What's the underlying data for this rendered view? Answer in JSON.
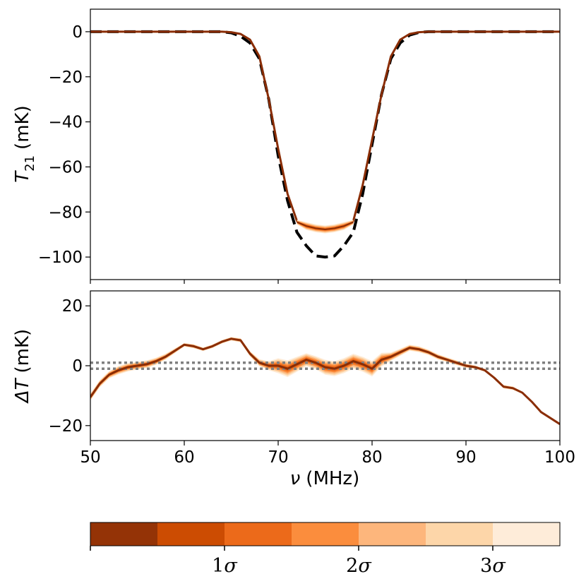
{
  "colors": {
    "model": "#8a2d05",
    "truth": "#000000",
    "zero_band": "#808080",
    "band_levels": [
      "#943306",
      "#cc4c02",
      "#ec6a1a",
      "#fb8d3d",
      "#fdb67c",
      "#fdd6a9",
      "#feecd9"
    ]
  },
  "chart_data": [
    {
      "type": "line",
      "panel": "top",
      "title": "",
      "xlabel": "",
      "ylabel_symbol": "T",
      "ylabel_subscript": "21",
      "ylabel_unit": "(mK)",
      "xlim": [
        50,
        100
      ],
      "ylim": [
        -110,
        10
      ],
      "yticks": [
        0,
        -20,
        -40,
        -60,
        -80,
        -100
      ],
      "ytick_labels": [
        "0",
        "−20",
        "−40",
        "−60",
        "−80",
        "−100"
      ],
      "series": [
        {
          "name": "model",
          "style": "solid",
          "x": [
            50,
            56,
            60,
            64,
            65,
            66,
            67,
            68,
            69,
            70,
            71,
            72,
            73,
            74,
            75,
            76,
            77,
            78,
            79,
            80,
            81,
            82,
            83,
            84,
            85,
            86,
            90,
            100
          ],
          "y": [
            0,
            0,
            0,
            0,
            -0.2,
            -1,
            -3.5,
            -11,
            -30,
            -52,
            -72,
            -84,
            -86.5,
            -87.5,
            -88,
            -87.5,
            -86.5,
            -84,
            -68,
            -48,
            -28,
            -11,
            -3.5,
            -1,
            -0.2,
            0,
            0,
            0
          ]
        },
        {
          "name": "truth",
          "style": "dashed",
          "x": [
            50,
            60,
            64,
            65,
            66,
            67,
            68,
            69,
            70,
            71,
            72,
            73,
            74,
            75,
            76,
            77,
            78,
            79,
            80,
            81,
            82,
            83,
            84,
            85,
            86,
            90,
            100
          ],
          "y": [
            0,
            0,
            0,
            -0.5,
            -2,
            -5,
            -12,
            -30,
            -55,
            -75,
            -89,
            -95,
            -99.5,
            -100,
            -99.5,
            -95,
            -89,
            -72,
            -50,
            -28,
            -12,
            -5,
            -1.5,
            -0.3,
            0,
            0,
            0
          ]
        }
      ],
      "band": {
        "x": [
          72,
          73,
          74,
          75,
          76,
          77,
          78
        ],
        "y_low": [
          -85.5,
          -88,
          -89,
          -89.5,
          -89,
          -88,
          -85.5
        ],
        "y_high": [
          -83.5,
          -84.5,
          -85.5,
          -86,
          -85.5,
          -84.5,
          -83.5
        ]
      }
    },
    {
      "type": "line",
      "panel": "bottom",
      "title": "",
      "xlabel_symbol": "ν",
      "xlabel_unit": "(MHz)",
      "ylabel_symbol": "ΔT",
      "ylabel_unit": "(mK)",
      "xlim": [
        50,
        100
      ],
      "ylim": [
        -25,
        25
      ],
      "xticks": [
        50,
        60,
        70,
        80,
        90,
        100
      ],
      "xtick_labels": [
        "50",
        "60",
        "70",
        "80",
        "90",
        "100"
      ],
      "yticks": [
        20,
        0,
        -20
      ],
      "ytick_labels": [
        "20",
        "0",
        "−20"
      ],
      "hlines": [
        1,
        -1
      ],
      "series": [
        {
          "name": "residual",
          "style": "solid",
          "x": [
            50,
            51,
            52,
            53,
            54,
            55,
            56,
            57,
            58,
            59,
            60,
            61,
            62,
            63,
            64,
            65,
            66,
            67,
            68,
            69,
            70,
            71,
            72,
            73,
            74,
            75,
            76,
            77,
            78,
            79,
            80,
            81,
            82,
            83,
            84,
            85,
            86,
            87,
            88,
            89,
            90,
            91,
            92,
            93,
            94,
            95,
            96,
            97,
            98,
            99,
            100
          ],
          "y": [
            -10.5,
            -6,
            -3,
            -1.5,
            -0.5,
            0,
            0.5,
            1.5,
            3,
            5,
            7,
            6.5,
            5.5,
            6.5,
            8,
            9,
            8.5,
            4,
            1,
            0,
            0,
            -1,
            0.5,
            2,
            1,
            -0.5,
            -1,
            0,
            1.5,
            0.5,
            -1,
            2,
            3,
            4.5,
            6,
            5.5,
            4.5,
            3,
            2,
            1,
            0,
            -0.5,
            -1.5,
            -4,
            -7,
            -7.5,
            -9,
            -12,
            -15.5,
            -17.5,
            -19.5
          ]
        }
      ],
      "band_halfwidth": [
        1.2,
        1.2,
        1.2,
        1.4,
        1.4,
        1.3,
        1.3,
        1.2,
        1.0,
        0.8,
        0.6,
        0.7,
        0.6,
        0.6,
        0.6,
        0.6,
        0.7,
        0.9,
        1.2,
        1.5,
        2.5,
        2.8,
        2.5,
        2.2,
        2.2,
        2.5,
        2.5,
        2.5,
        2.5,
        2.5,
        2.6,
        2.3,
        1.4,
        1.2,
        1.0,
        1.0,
        0.9,
        0.9,
        0.8,
        0.8,
        0.7,
        0.6,
        0.5,
        0.5,
        0.6,
        0.6,
        0.4,
        0.3,
        0.3,
        0.3,
        0.3
      ]
    }
  ],
  "colorbar": {
    "tick_labels": [
      "1σ",
      "2σ",
      "3σ"
    ],
    "tick_fractions": [
      0,
      0.2857,
      0.5714,
      0.8571
    ]
  }
}
